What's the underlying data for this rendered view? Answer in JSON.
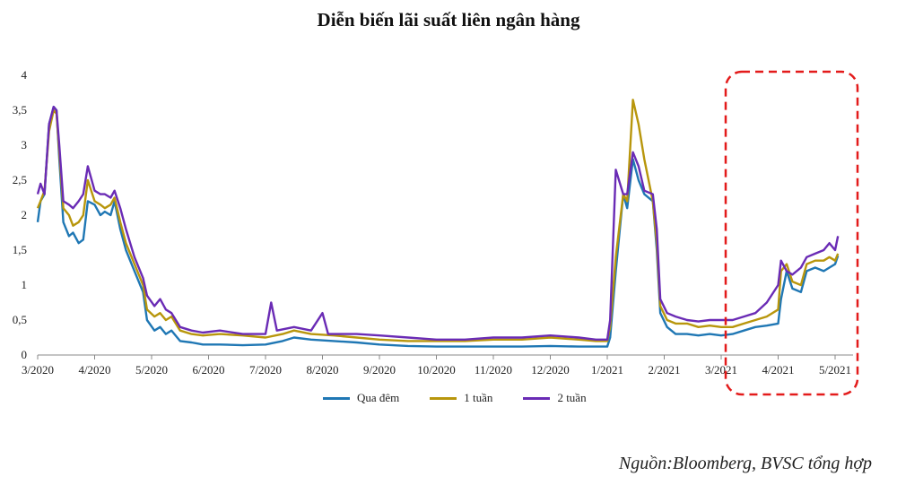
{
  "chart_data": {
    "type": "line",
    "title": "Diễn biến lãi suất liên ngân hàng",
    "ylim": [
      0,
      4
    ],
    "y_ticks": [
      "0",
      "0,5",
      "1",
      "1,5",
      "2",
      "2,5",
      "3",
      "3,5",
      "4"
    ],
    "x_ticks": [
      "3/2020",
      "4/2020",
      "5/2020",
      "6/2020",
      "7/2020",
      "8/2020",
      "9/2020",
      "10/2020",
      "11/2020",
      "12/2020",
      "1/2021",
      "2/2021",
      "3/2021",
      "4/2021",
      "5/2021"
    ],
    "grid": false,
    "legend_position": "bottom",
    "highlight_box": {
      "from": "3/2021",
      "to": "5/2021",
      "style": "red dashed"
    },
    "series": [
      {
        "name": "Qua đêm",
        "color": "#1f77b4",
        "points": [
          [
            0,
            1.9
          ],
          [
            0.05,
            2.2
          ],
          [
            0.12,
            2.3
          ],
          [
            0.2,
            3.3
          ],
          [
            0.28,
            3.55
          ],
          [
            0.33,
            3.5
          ],
          [
            0.38,
            2.8
          ],
          [
            0.45,
            1.9
          ],
          [
            0.55,
            1.7
          ],
          [
            0.62,
            1.75
          ],
          [
            0.72,
            1.6
          ],
          [
            0.8,
            1.65
          ],
          [
            0.88,
            2.2
          ],
          [
            1.0,
            2.15
          ],
          [
            1.1,
            2.0
          ],
          [
            1.18,
            2.05
          ],
          [
            1.28,
            2.0
          ],
          [
            1.35,
            2.2
          ],
          [
            1.45,
            1.8
          ],
          [
            1.55,
            1.5
          ],
          [
            1.7,
            1.2
          ],
          [
            1.85,
            0.9
          ],
          [
            1.92,
            0.5
          ],
          [
            2.05,
            0.35
          ],
          [
            2.15,
            0.4
          ],
          [
            2.25,
            0.3
          ],
          [
            2.35,
            0.35
          ],
          [
            2.5,
            0.2
          ],
          [
            2.7,
            0.18
          ],
          [
            2.9,
            0.15
          ],
          [
            3.2,
            0.15
          ],
          [
            3.6,
            0.14
          ],
          [
            4.0,
            0.15
          ],
          [
            4.3,
            0.2
          ],
          [
            4.5,
            0.25
          ],
          [
            4.8,
            0.22
          ],
          [
            5.2,
            0.2
          ],
          [
            5.6,
            0.18
          ],
          [
            6.0,
            0.15
          ],
          [
            6.5,
            0.13
          ],
          [
            7.0,
            0.12
          ],
          [
            7.5,
            0.12
          ],
          [
            8.0,
            0.12
          ],
          [
            8.5,
            0.12
          ],
          [
            9.0,
            0.13
          ],
          [
            9.5,
            0.12
          ],
          [
            9.8,
            0.12
          ],
          [
            10.0,
            0.12
          ],
          [
            10.05,
            0.25
          ],
          [
            10.15,
            1.2
          ],
          [
            10.28,
            2.3
          ],
          [
            10.35,
            2.1
          ],
          [
            10.45,
            2.8
          ],
          [
            10.55,
            2.5
          ],
          [
            10.65,
            2.3
          ],
          [
            10.8,
            2.2
          ],
          [
            10.87,
            1.5
          ],
          [
            10.93,
            0.6
          ],
          [
            11.05,
            0.4
          ],
          [
            11.2,
            0.3
          ],
          [
            11.4,
            0.3
          ],
          [
            11.6,
            0.28
          ],
          [
            11.8,
            0.3
          ],
          [
            12.0,
            0.28
          ],
          [
            12.2,
            0.3
          ],
          [
            12.4,
            0.35
          ],
          [
            12.6,
            0.4
          ],
          [
            12.8,
            0.42
          ],
          [
            13.0,
            0.45
          ],
          [
            13.05,
            0.8
          ],
          [
            13.15,
            1.2
          ],
          [
            13.25,
            0.95
          ],
          [
            13.4,
            0.9
          ],
          [
            13.5,
            1.2
          ],
          [
            13.65,
            1.25
          ],
          [
            13.8,
            1.2
          ],
          [
            13.9,
            1.25
          ],
          [
            14.0,
            1.3
          ],
          [
            14.05,
            1.42
          ]
        ]
      },
      {
        "name": "1 tuần",
        "color": "#b8960c",
        "points": [
          [
            0,
            2.1
          ],
          [
            0.05,
            2.2
          ],
          [
            0.12,
            2.35
          ],
          [
            0.2,
            3.2
          ],
          [
            0.28,
            3.5
          ],
          [
            0.33,
            3.45
          ],
          [
            0.38,
            2.9
          ],
          [
            0.45,
            2.1
          ],
          [
            0.55,
            2.0
          ],
          [
            0.62,
            1.85
          ],
          [
            0.72,
            1.9
          ],
          [
            0.8,
            2.0
          ],
          [
            0.88,
            2.5
          ],
          [
            1.0,
            2.2
          ],
          [
            1.1,
            2.15
          ],
          [
            1.18,
            2.1
          ],
          [
            1.28,
            2.15
          ],
          [
            1.35,
            2.25
          ],
          [
            1.45,
            1.9
          ],
          [
            1.55,
            1.6
          ],
          [
            1.7,
            1.3
          ],
          [
            1.85,
            1.0
          ],
          [
            1.92,
            0.65
          ],
          [
            2.05,
            0.55
          ],
          [
            2.15,
            0.6
          ],
          [
            2.25,
            0.5
          ],
          [
            2.35,
            0.55
          ],
          [
            2.5,
            0.35
          ],
          [
            2.7,
            0.3
          ],
          [
            2.9,
            0.28
          ],
          [
            3.2,
            0.3
          ],
          [
            3.6,
            0.28
          ],
          [
            4.0,
            0.25
          ],
          [
            4.3,
            0.3
          ],
          [
            4.5,
            0.35
          ],
          [
            4.8,
            0.3
          ],
          [
            5.2,
            0.28
          ],
          [
            5.6,
            0.25
          ],
          [
            6.0,
            0.22
          ],
          [
            6.5,
            0.2
          ],
          [
            7.0,
            0.2
          ],
          [
            7.5,
            0.2
          ],
          [
            8.0,
            0.22
          ],
          [
            8.5,
            0.22
          ],
          [
            9.0,
            0.25
          ],
          [
            9.5,
            0.22
          ],
          [
            9.8,
            0.2
          ],
          [
            10.0,
            0.2
          ],
          [
            10.05,
            0.4
          ],
          [
            10.15,
            1.4
          ],
          [
            10.28,
            2.3
          ],
          [
            10.35,
            2.2
          ],
          [
            10.45,
            3.65
          ],
          [
            10.55,
            3.3
          ],
          [
            10.65,
            2.8
          ],
          [
            10.8,
            2.2
          ],
          [
            10.87,
            1.6
          ],
          [
            10.93,
            0.7
          ],
          [
            11.05,
            0.5
          ],
          [
            11.2,
            0.45
          ],
          [
            11.4,
            0.45
          ],
          [
            11.6,
            0.4
          ],
          [
            11.8,
            0.42
          ],
          [
            12.0,
            0.4
          ],
          [
            12.2,
            0.4
          ],
          [
            12.4,
            0.45
          ],
          [
            12.6,
            0.5
          ],
          [
            12.8,
            0.55
          ],
          [
            13.0,
            0.65
          ],
          [
            13.05,
            1.2
          ],
          [
            13.15,
            1.3
          ],
          [
            13.25,
            1.05
          ],
          [
            13.4,
            1.0
          ],
          [
            13.5,
            1.3
          ],
          [
            13.65,
            1.35
          ],
          [
            13.8,
            1.35
          ],
          [
            13.9,
            1.4
          ],
          [
            14.0,
            1.35
          ],
          [
            14.05,
            1.45
          ]
        ]
      },
      {
        "name": "2 tuần",
        "color": "#6a2bb5",
        "points": [
          [
            0,
            2.3
          ],
          [
            0.05,
            2.45
          ],
          [
            0.12,
            2.3
          ],
          [
            0.2,
            3.3
          ],
          [
            0.28,
            3.55
          ],
          [
            0.33,
            3.5
          ],
          [
            0.38,
            3.0
          ],
          [
            0.45,
            2.2
          ],
          [
            0.55,
            2.15
          ],
          [
            0.62,
            2.1
          ],
          [
            0.72,
            2.2
          ],
          [
            0.8,
            2.3
          ],
          [
            0.88,
            2.7
          ],
          [
            1.0,
            2.35
          ],
          [
            1.1,
            2.3
          ],
          [
            1.18,
            2.3
          ],
          [
            1.28,
            2.25
          ],
          [
            1.35,
            2.35
          ],
          [
            1.45,
            2.1
          ],
          [
            1.55,
            1.8
          ],
          [
            1.7,
            1.4
          ],
          [
            1.85,
            1.1
          ],
          [
            1.92,
            0.85
          ],
          [
            2.05,
            0.7
          ],
          [
            2.15,
            0.8
          ],
          [
            2.25,
            0.65
          ],
          [
            2.35,
            0.6
          ],
          [
            2.5,
            0.4
          ],
          [
            2.7,
            0.35
          ],
          [
            2.9,
            0.32
          ],
          [
            3.2,
            0.35
          ],
          [
            3.6,
            0.3
          ],
          [
            4.0,
            0.3
          ],
          [
            4.1,
            0.75
          ],
          [
            4.2,
            0.35
          ],
          [
            4.5,
            0.4
          ],
          [
            4.8,
            0.35
          ],
          [
            5.0,
            0.6
          ],
          [
            5.1,
            0.3
          ],
          [
            5.6,
            0.3
          ],
          [
            6.0,
            0.28
          ],
          [
            6.5,
            0.25
          ],
          [
            7.0,
            0.22
          ],
          [
            7.5,
            0.22
          ],
          [
            8.0,
            0.25
          ],
          [
            8.5,
            0.25
          ],
          [
            9.0,
            0.28
          ],
          [
            9.5,
            0.25
          ],
          [
            9.8,
            0.22
          ],
          [
            10.0,
            0.22
          ],
          [
            10.05,
            0.5
          ],
          [
            10.15,
            2.65
          ],
          [
            10.28,
            2.3
          ],
          [
            10.35,
            2.3
          ],
          [
            10.45,
            2.9
          ],
          [
            10.55,
            2.7
          ],
          [
            10.65,
            2.35
          ],
          [
            10.8,
            2.3
          ],
          [
            10.87,
            1.8
          ],
          [
            10.93,
            0.8
          ],
          [
            11.05,
            0.6
          ],
          [
            11.2,
            0.55
          ],
          [
            11.4,
            0.5
          ],
          [
            11.6,
            0.48
          ],
          [
            11.8,
            0.5
          ],
          [
            12.0,
            0.5
          ],
          [
            12.2,
            0.5
          ],
          [
            12.4,
            0.55
          ],
          [
            12.6,
            0.6
          ],
          [
            12.8,
            0.75
          ],
          [
            13.0,
            1.0
          ],
          [
            13.05,
            1.35
          ],
          [
            13.15,
            1.2
          ],
          [
            13.25,
            1.15
          ],
          [
            13.4,
            1.25
          ],
          [
            13.5,
            1.4
          ],
          [
            13.65,
            1.45
          ],
          [
            13.8,
            1.5
          ],
          [
            13.9,
            1.6
          ],
          [
            14.0,
            1.5
          ],
          [
            14.05,
            1.7
          ]
        ]
      }
    ]
  },
  "source": "Nguồn:Bloomberg, BVSC tổng hợp"
}
